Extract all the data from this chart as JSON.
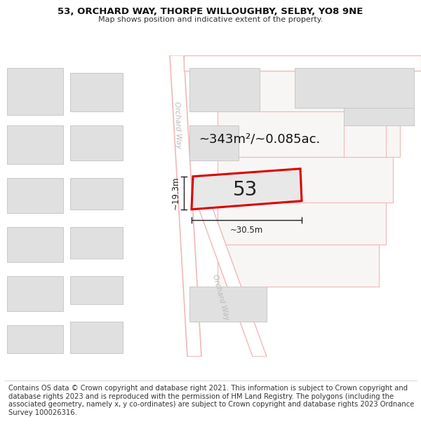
{
  "title_line1": "53, ORCHARD WAY, THORPE WILLOUGHBY, SELBY, YO8 9NE",
  "title_line2": "Map shows position and indicative extent of the property.",
  "footer_text": "Contains OS data © Crown copyright and database right 2021. This information is subject to Crown copyright and database rights 2023 and is reproduced with the permission of HM Land Registry. The polygons (including the associated geometry, namely x, y co-ordinates) are subject to Crown copyright and database rights 2023 Ordnance Survey 100026316.",
  "area_label": "~343m²/~0.085ac.",
  "width_label": "~30.5m",
  "height_label": "~19.3m",
  "plot_number": "53",
  "bg_color": "#f5f4f2",
  "road_fill": "#ffffff",
  "road_edge": "#f0b8b8",
  "plot_outline_color": "#dd0000",
  "building_fill": "#e0e0e0",
  "building_edge": "#c8c8c8",
  "plot_fill": "#e8e8e8",
  "dim_color": "#222222",
  "road_label_color": "#bbbbbb",
  "title_fontsize": 9.5,
  "subtitle_fontsize": 8.0,
  "footer_fontsize": 7.2,
  "area_fontsize": 13,
  "plot_num_fontsize": 20,
  "dim_fontsize": 8.5,
  "road_label_fontsize": 7.5
}
